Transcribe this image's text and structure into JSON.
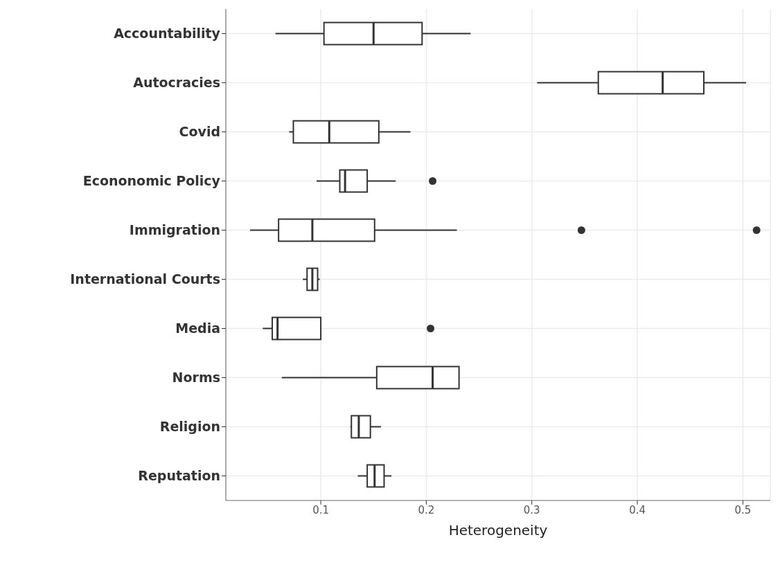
{
  "chart_data": {
    "type": "box",
    "orientation": "horizontal",
    "xlabel": "Heterogeneity",
    "color": "#333333",
    "categories": [
      "Accountability",
      "Autocracies",
      "Covid",
      "Econonomic Policy",
      "Immigration",
      "International Courts",
      "Media",
      "Norms",
      "Religion",
      "Reputation"
    ],
    "boxes": [
      {
        "low": 0.057,
        "q1": 0.103,
        "median": 0.15,
        "q3": 0.196,
        "high": 0.242
      },
      {
        "low": 0.305,
        "q1": 0.363,
        "median": 0.424,
        "q3": 0.463,
        "high": 0.503
      },
      {
        "low": 0.07,
        "q1": 0.074,
        "median": 0.108,
        "q3": 0.155,
        "high": 0.185
      },
      {
        "low": 0.096,
        "q1": 0.118,
        "median": 0.123,
        "q3": 0.144,
        "high": 0.171,
        "outliers": [
          0.206
        ]
      },
      {
        "low": 0.033,
        "q1": 0.06,
        "median": 0.092,
        "q3": 0.151,
        "high": 0.229,
        "outliers": [
          0.347,
          0.513
        ]
      },
      {
        "low": 0.083,
        "q1": 0.087,
        "median": 0.092,
        "q3": 0.097,
        "high": 0.099
      },
      {
        "low": 0.045,
        "q1": 0.054,
        "median": 0.059,
        "q3": 0.1,
        "high": 0.1,
        "outliers": [
          0.204
        ]
      },
      {
        "low": 0.063,
        "q1": 0.153,
        "median": 0.206,
        "q3": 0.231,
        "high": 0.231
      },
      {
        "low": 0.128,
        "q1": 0.129,
        "median": 0.136,
        "q3": 0.147,
        "high": 0.157
      },
      {
        "low": 0.135,
        "q1": 0.144,
        "median": 0.151,
        "q3": 0.16,
        "high": 0.167
      }
    ],
    "xlim": [
      0.01,
      0.526
    ],
    "xticks": [
      0.1,
      0.2,
      0.3,
      0.4,
      0.5
    ],
    "grid": true
  }
}
